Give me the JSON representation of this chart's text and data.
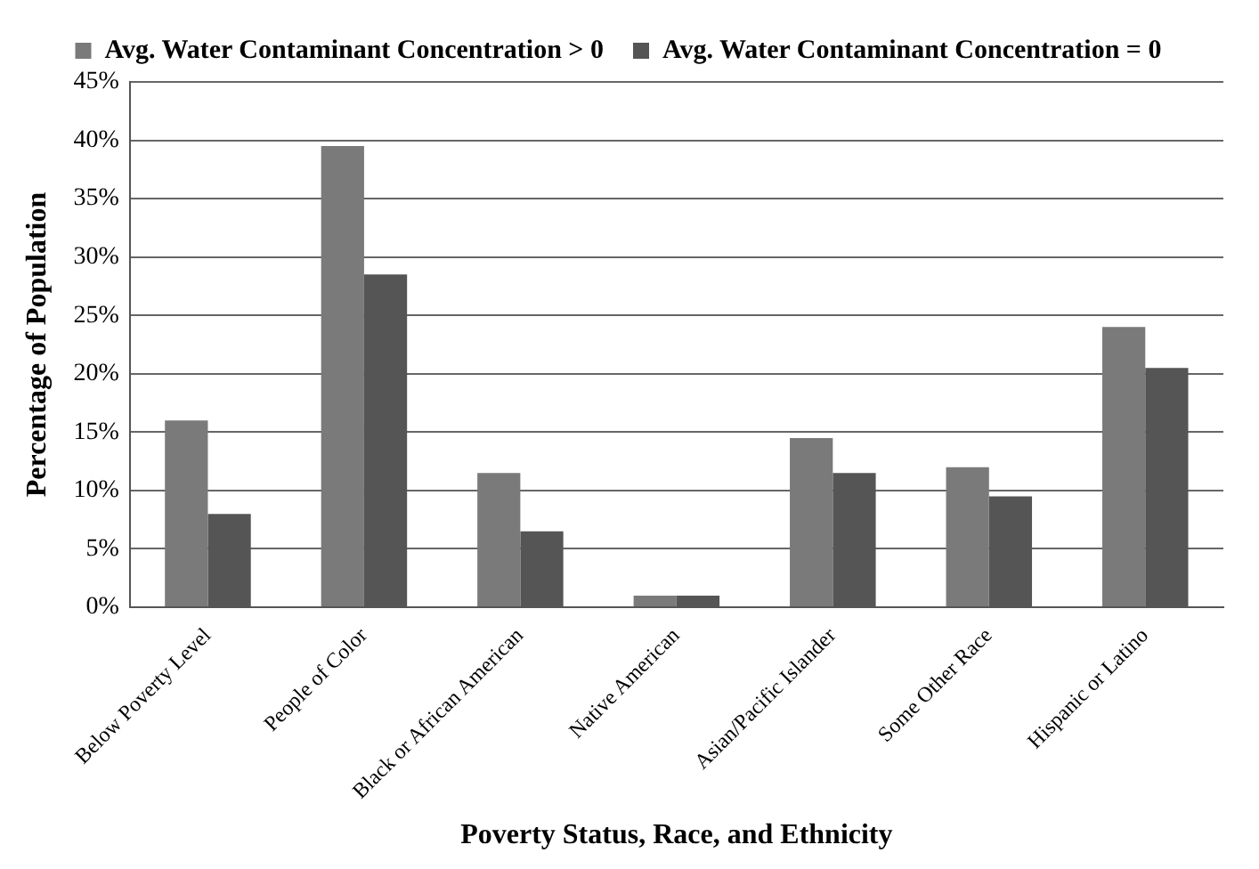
{
  "chart_data": {
    "type": "bar",
    "xlabel": "Poverty Status, Race, and Ethnicity",
    "ylabel": "Percentage of Population",
    "categories": [
      "Below Poverty Level",
      "People of Color",
      "Black or African American",
      "Native American",
      "Asian/Pacific Islander",
      "Some Other Race",
      "Hispanic or Latino"
    ],
    "series": [
      {
        "name": "Avg. Water Contaminant Concentration > 0",
        "color": "#7a7a7a",
        "values": [
          16,
          39.5,
          11.5,
          1,
          14.5,
          12,
          24
        ]
      },
      {
        "name": "Avg. Water Contaminant Concentration = 0",
        "color": "#555555",
        "values": [
          8,
          28.5,
          6.5,
          1,
          11.5,
          9.5,
          20.5
        ]
      }
    ],
    "ylim": [
      0,
      45
    ],
    "yticks": [
      {
        "value": 0,
        "label": "0%"
      },
      {
        "value": 5,
        "label": "5%"
      },
      {
        "value": 10,
        "label": "10%"
      },
      {
        "value": 15,
        "label": "15%"
      },
      {
        "value": 20,
        "label": "20%"
      },
      {
        "value": 25,
        "label": "25%"
      },
      {
        "value": 30,
        "label": "30%"
      },
      {
        "value": 35,
        "label": "35%"
      },
      {
        "value": 40,
        "label": "40%"
      },
      {
        "value": 45,
        "label": "45%"
      }
    ],
    "grid": "y",
    "legend": "top"
  }
}
